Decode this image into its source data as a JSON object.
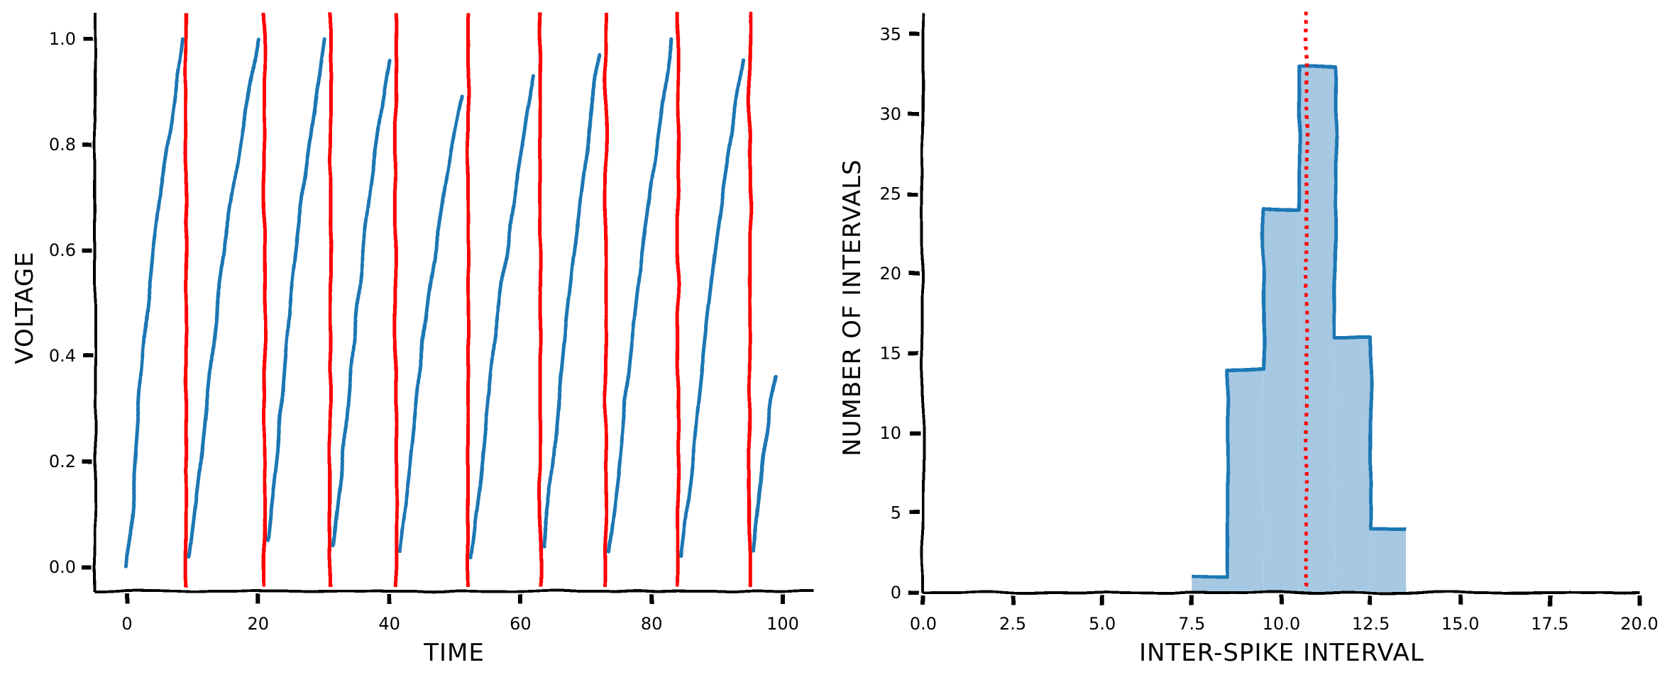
{
  "chart_data": [
    {
      "type": "line",
      "xlabel": "TIME",
      "ylabel": "VOLTAGE",
      "xlim": [
        -5,
        105
      ],
      "ylim": [
        -0.05,
        1.05
      ],
      "xticks": [
        0,
        20,
        40,
        60,
        80,
        100
      ],
      "yticks": [
        0.0,
        0.2,
        0.4,
        0.6,
        0.8,
        1.0
      ],
      "xtick_labels": [
        "0",
        "20",
        "40",
        "60",
        "80",
        "100"
      ],
      "ytick_labels": [
        "0.0",
        "0.2",
        "0.4",
        "0.6",
        "0.8",
        "1.0"
      ],
      "series": [
        {
          "color": "#1f77b4",
          "segments": [
            {
              "x": [
                0,
                1,
                2,
                3,
                4,
                5,
                6,
                7,
                8,
                8.5
              ],
              "y": [
                0.0,
                0.15,
                0.33,
                0.48,
                0.6,
                0.7,
                0.78,
                0.86,
                0.95,
                1.0
              ]
            },
            {
              "x": [
                9.5,
                11,
                12,
                13,
                14,
                15,
                16,
                17,
                18,
                19,
                20
              ],
              "y": [
                0.02,
                0.18,
                0.3,
                0.42,
                0.53,
                0.62,
                0.7,
                0.78,
                0.86,
                0.93,
                1.0
              ]
            },
            {
              "x": [
                21.5,
                23,
                24,
                25,
                26,
                27,
                28,
                29,
                30
              ],
              "y": [
                0.05,
                0.22,
                0.38,
                0.52,
                0.63,
                0.73,
                0.82,
                0.91,
                1.0
              ]
            },
            {
              "x": [
                31.5,
                33,
                34,
                35,
                36,
                37,
                38,
                39,
                40
              ],
              "y": [
                0.04,
                0.2,
                0.35,
                0.48,
                0.6,
                0.7,
                0.79,
                0.88,
                0.96
              ]
            },
            {
              "x": [
                41.5,
                43,
                44,
                45,
                46,
                47,
                48,
                49,
                50,
                51
              ],
              "y": [
                0.03,
                0.18,
                0.3,
                0.42,
                0.52,
                0.6,
                0.68,
                0.76,
                0.83,
                0.89
              ]
            },
            {
              "x": [
                52.5,
                54,
                55,
                56,
                57,
                58,
                59,
                60,
                61,
                62
              ],
              "y": [
                0.02,
                0.17,
                0.3,
                0.42,
                0.52,
                0.61,
                0.7,
                0.78,
                0.86,
                0.93
              ]
            },
            {
              "x": [
                63.5,
                65,
                66,
                67,
                68,
                69,
                70,
                71,
                72
              ],
              "y": [
                0.04,
                0.2,
                0.34,
                0.47,
                0.58,
                0.68,
                0.78,
                0.88,
                0.97
              ]
            },
            {
              "x": [
                73.5,
                75,
                76,
                77,
                78,
                79,
                80,
                81,
                82,
                83
              ],
              "y": [
                0.03,
                0.18,
                0.31,
                0.43,
                0.54,
                0.64,
                0.73,
                0.82,
                0.91,
                1.0
              ]
            },
            {
              "x": [
                84.5,
                86,
                87,
                88,
                89,
                90,
                91,
                92,
                93,
                94
              ],
              "y": [
                0.02,
                0.17,
                0.3,
                0.42,
                0.53,
                0.63,
                0.72,
                0.8,
                0.88,
                0.96
              ]
            },
            {
              "x": [
                95.5,
                96.5,
                97.5,
                98,
                99
              ],
              "y": [
                0.03,
                0.14,
                0.25,
                0.3,
                0.36
              ]
            }
          ]
        }
      ],
      "spike_times": [
        9,
        21,
        31,
        41,
        52,
        63,
        73,
        84,
        95
      ],
      "spike_color": "#ff0000",
      "grid": false
    },
    {
      "type": "bar",
      "xlabel": "INTER-SPIKE INTERVAL",
      "ylabel": "NUMBER OF INTERVALS",
      "xlim": [
        0,
        20
      ],
      "ylim": [
        0,
        36
      ],
      "xticks": [
        0,
        2.5,
        5,
        7.5,
        10,
        12.5,
        15,
        17.5,
        20
      ],
      "yticks": [
        0,
        5,
        10,
        15,
        20,
        25,
        30,
        35
      ],
      "xtick_labels": [
        "0.0",
        "2.5",
        "5.0",
        "7.5",
        "10.0",
        "12.5",
        "15.0",
        "17.5",
        "20.0"
      ],
      "ytick_labels": [
        "0",
        "5",
        "10",
        "15",
        "20",
        "25",
        "30",
        "35"
      ],
      "bin_edges": [
        7.5,
        8.5,
        9.5,
        10.5,
        11.5,
        12.5,
        13.5
      ],
      "values": [
        1,
        14,
        24,
        33,
        16,
        4
      ],
      "fill_color": "#a6c8e2",
      "edge_color": "#1f77b4",
      "mean_line": 10.7,
      "mean_line_color": "#ff0000",
      "grid": false
    }
  ]
}
